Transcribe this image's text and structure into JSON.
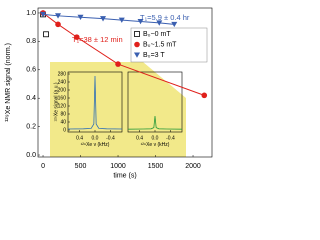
{
  "chart_data": [
    {
      "type": "scatter",
      "xlabel": "time (s)",
      "ylabel": "¹²⁹Xe NMR signal (norm.)",
      "xlim": [
        -67,
        2253
      ],
      "xticks": [
        0,
        500,
        1000,
        1500,
        2000
      ],
      "ylim": [
        -0.014,
        1.035
      ],
      "yticks": [
        {
          "value": 0,
          "label": "0.0"
        },
        {
          "value": 0.2,
          "label": "0.2"
        },
        {
          "value": 0.4,
          "label": "0.4"
        },
        {
          "value": 0.6,
          "label": "0.6"
        },
        {
          "value": 0.8,
          "label": "0.8"
        },
        {
          "value": 1,
          "label": "1.0"
        }
      ],
      "legend_loc": "upper right",
      "annotations": [
        "T₁=5.9 ± 0.4 hr",
        "T₁=38 ± 12 min"
      ],
      "series": [
        {
          "name": "B₀~0 mT",
          "color": "#000000",
          "marker": "square",
          "fit": false,
          "x": [
            0,
            40
          ],
          "values": [
            0.99,
            0.85
          ]
        },
        {
          "name": "B₀~1.5 mT",
          "color": "#e0201b",
          "marker": "circle",
          "fit": true,
          "x": [
            0,
            200,
            450,
            1000,
            2150
          ],
          "values": [
            1.0,
            0.92,
            0.83,
            0.64,
            0.42
          ]
        },
        {
          "name": "B₀=3 T",
          "color": "#3a5fb0",
          "marker": "triangle",
          "fit": true,
          "x": [
            0,
            200,
            500,
            800,
            1050,
            1300,
            1550,
            1750
          ],
          "values": [
            0.99,
            0.98,
            0.97,
            0.96,
            0.95,
            0.94,
            0.93,
            0.92
          ]
        }
      ]
    },
    {
      "type": "line",
      "xlabel": "¹²⁹Xe ν (kHz)",
      "ylabel": "¹²⁹Xe signal (a.u.)",
      "xlim": [
        0.7,
        -0.7
      ],
      "xticks": [
        0.4,
        {
          "value": 0,
          "label": "0.0"
        },
        -0.4
      ],
      "ylim": [
        -10,
        290
      ],
      "yticks": [
        0,
        40,
        80,
        120,
        160,
        200,
        240,
        280
      ],
      "series": [
        {
          "color": "#2f6fb5",
          "x": [
            0.7,
            0.3,
            0.1,
            0.03,
            0,
            -0.03,
            -0.1,
            -0.3,
            -0.7
          ],
          "values": [
            5,
            6,
            8,
            30,
            270,
            30,
            8,
            6,
            5
          ]
        }
      ]
    },
    {
      "type": "line",
      "xlabel": "¹²⁹Xe ν (kHz)",
      "xlim": [
        0.7,
        -0.7
      ],
      "xticks": [
        0.4,
        {
          "value": 0,
          "label": "0.0"
        },
        -0.4
      ],
      "ylim": [
        -10,
        290
      ],
      "series": [
        {
          "color": "#2a9a3a",
          "x": [
            0.7,
            0.3,
            0.1,
            0.03,
            0,
            -0.03,
            -0.1,
            -0.3,
            -0.7
          ],
          "values": [
            4,
            5,
            6,
            12,
            70,
            12,
            6,
            5,
            4
          ]
        }
      ]
    }
  ]
}
